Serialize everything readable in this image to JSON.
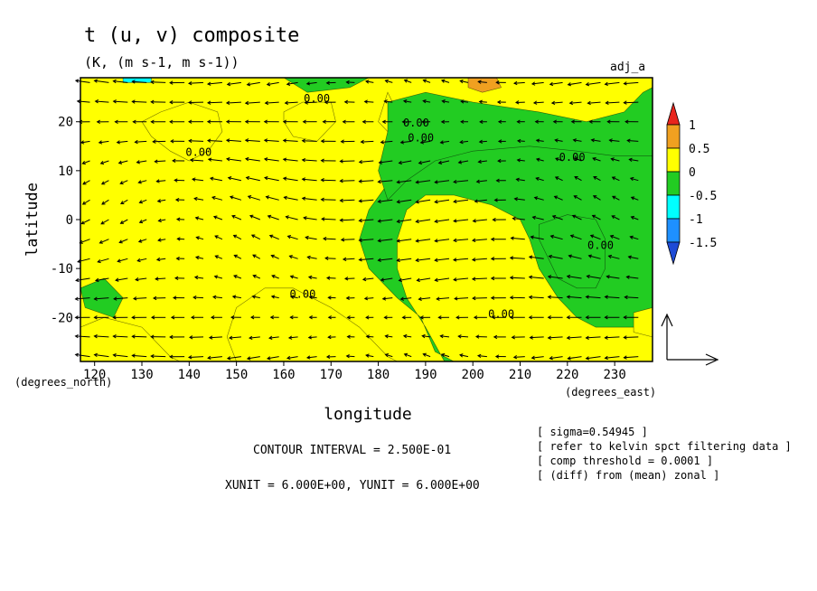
{
  "chart_data": {
    "type": "heatmap",
    "title": "t (u, v) composite",
    "subtitle": "(K, (m s-1, m s-1))",
    "tag": "adj_a",
    "xlabel": "longitude",
    "ylabel": "latitude",
    "x_unit_label": "(degrees_east)",
    "y_unit_label": "(degrees_north)",
    "xlim": [
      117,
      238
    ],
    "ylim": [
      -29,
      29
    ],
    "x_ticks": [
      "120",
      "130",
      "140",
      "150",
      "160",
      "170",
      "180",
      "190",
      "200",
      "210",
      "220",
      "230"
    ],
    "x_tick_values": [
      120,
      130,
      140,
      150,
      160,
      170,
      180,
      190,
      200,
      210,
      220,
      230
    ],
    "y_ticks": [
      "20",
      "10",
      "0",
      "-10",
      "-20"
    ],
    "y_tick_values": [
      20,
      10,
      0,
      -10,
      -20
    ],
    "colorbar": {
      "labels": [
        "1",
        "0.5",
        "0",
        "-0.5",
        "-1",
        "-1.5"
      ],
      "label_values": [
        1,
        0.5,
        0,
        -0.5,
        -1,
        -1.5
      ],
      "colors": [
        "#e8251d",
        "#f0a020",
        "#ffff00",
        "#22cc22",
        "#00ffff",
        "#1e90ff",
        "#1e4bd6"
      ]
    },
    "contour_labels": [
      "0.00",
      "0.00",
      "0.00",
      "0.00",
      "0.00",
      "0.00",
      "0.00",
      "0.00"
    ],
    "contour_label_positions": [
      [
        167,
        24
      ],
      [
        189,
        16
      ],
      [
        142,
        13
      ],
      [
        221,
        12
      ],
      [
        227,
        -6
      ],
      [
        164,
        -16
      ],
      [
        206,
        -20
      ],
      [
        188,
        19
      ]
    ],
    "warm_regions": [
      [
        [
          117,
          29
        ],
        [
          160,
          29
        ],
        [
          165,
          26
        ],
        [
          174,
          27
        ],
        [
          178,
          29
        ],
        [
          238,
          29
        ],
        [
          238,
          13
        ],
        [
          228,
          15
        ],
        [
          216,
          16
        ],
        [
          205,
          16
        ],
        [
          196,
          15
        ],
        [
          190,
          13
        ],
        [
          184,
          10
        ],
        [
          178,
          2
        ],
        [
          176,
          -4
        ],
        [
          178,
          -10
        ],
        [
          184,
          -16
        ],
        [
          189,
          -20
        ],
        [
          192,
          -27
        ],
        [
          196,
          -29
        ],
        [
          238,
          -29
        ],
        [
          238,
          -22
        ],
        [
          232,
          -22
        ],
        [
          226,
          -22
        ],
        [
          222,
          -20
        ],
        [
          218,
          -16
        ],
        [
          214,
          -10
        ],
        [
          212,
          -4
        ],
        [
          210,
          0
        ],
        [
          204,
          3
        ],
        [
          196,
          5
        ],
        [
          190,
          5
        ],
        [
          186,
          2
        ],
        [
          184,
          -4
        ],
        [
          184,
          -10
        ],
        [
          186,
          -16
        ],
        [
          190,
          -22
        ],
        [
          194,
          -29
        ],
        [
          150,
          -29
        ],
        [
          148,
          -24
        ],
        [
          150,
          -18
        ],
        [
          156,
          -14
        ],
        [
          162,
          -14
        ],
        [
          170,
          -18
        ],
        [
          176,
          -22
        ],
        [
          182,
          -28
        ],
        [
          184,
          -29
        ],
        [
          117,
          -29
        ],
        [
          117,
          -22
        ],
        [
          122,
          -20
        ],
        [
          130,
          -22
        ],
        [
          136,
          -28
        ],
        [
          138,
          -29
        ],
        [
          117,
          -29
        ]
      ],
      [
        [
          134,
          22
        ],
        [
          140,
          24
        ],
        [
          146,
          22
        ],
        [
          147,
          18
        ],
        [
          144,
          14
        ],
        [
          140,
          12
        ],
        [
          136,
          14
        ],
        [
          132,
          17
        ],
        [
          130,
          20
        ]
      ],
      [
        [
          160,
          22
        ],
        [
          164,
          24
        ],
        [
          170,
          24
        ],
        [
          171,
          20
        ],
        [
          167,
          16
        ],
        [
          162,
          17
        ],
        [
          160,
          20
        ]
      ],
      [
        [
          182,
          26
        ],
        [
          184,
          22
        ],
        [
          182,
          18
        ],
        [
          180,
          20
        ]
      ],
      [
        [
          234,
          -19
        ],
        [
          238,
          -18
        ],
        [
          238,
          -24
        ],
        [
          234,
          -23
        ]
      ]
    ],
    "cool_regions": [
      [
        [
          182,
          24
        ],
        [
          190,
          26
        ],
        [
          200,
          24
        ],
        [
          214,
          22
        ],
        [
          224,
          20
        ],
        [
          232,
          22
        ],
        [
          236,
          26
        ],
        [
          238,
          27
        ],
        [
          238,
          13
        ],
        [
          230,
          13
        ],
        [
          222,
          14
        ],
        [
          212,
          15
        ],
        [
          200,
          14
        ],
        [
          192,
          12
        ],
        [
          186,
          8
        ],
        [
          182,
          4
        ],
        [
          180,
          10
        ],
        [
          182,
          18
        ]
      ],
      [
        [
          214,
          -1
        ],
        [
          220,
          1
        ],
        [
          226,
          0
        ],
        [
          228,
          -4
        ],
        [
          228,
          -10
        ],
        [
          226,
          -14
        ],
        [
          222,
          -14
        ],
        [
          218,
          -12
        ],
        [
          216,
          -8
        ],
        [
          214,
          -4
        ]
      ],
      [
        [
          117,
          -14
        ],
        [
          122,
          -12
        ],
        [
          126,
          -16
        ],
        [
          124,
          -20
        ],
        [
          118,
          -18
        ]
      ]
    ],
    "warm_patches": [
      [
        [
          199,
          29
        ],
        [
          205,
          29
        ],
        [
          206,
          27
        ],
        [
          202,
          26
        ],
        [
          199,
          27
        ]
      ]
    ],
    "cyan_patches": [
      [
        [
          126,
          29
        ],
        [
          132,
          29
        ],
        [
          132,
          28
        ],
        [
          126,
          28
        ]
      ]
    ],
    "legend": {
      "vector_unit_label": "XUNIT = 6.000E+00, YUNIT = 6.000E+00"
    },
    "contour_interval": "CONTOUR INTERVAL = 2.500E-01",
    "notes": [
      "[ sigma=0.54945 ]",
      "[ refer to kelvin spct filtering data ]",
      "[ comp threshold = 0.0001 ]",
      "[ (diff) from (mean) zonal ]"
    ]
  }
}
